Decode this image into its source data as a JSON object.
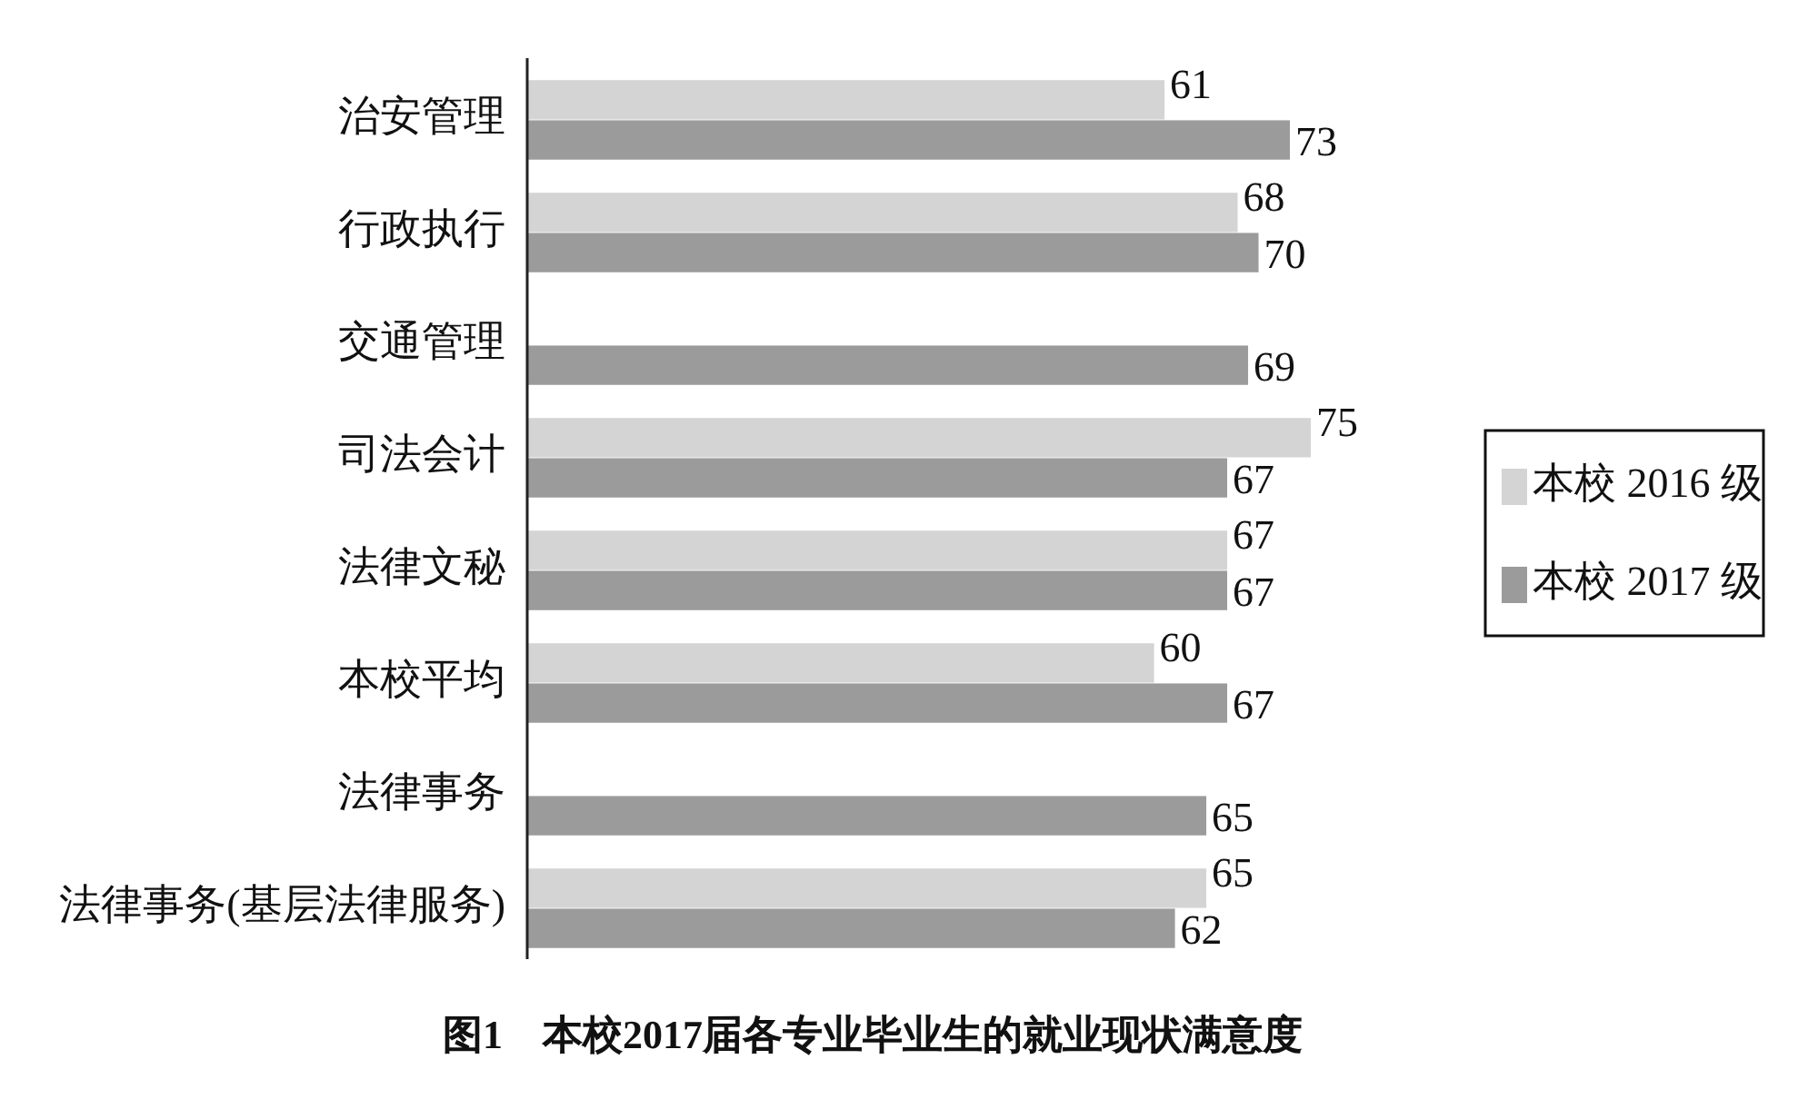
{
  "chart_data": {
    "type": "bar",
    "orientation": "horizontal",
    "title": "图1　本校2017届各专业毕业生的就业现状满意度",
    "categories": [
      "治安管理",
      "行政执行",
      "交通管理",
      "司法会计",
      "法律文秘",
      "本校平均",
      "法律事务",
      "法律事务(基层法律服务)"
    ],
    "series": [
      {
        "name": "本校 2016 级",
        "color": "#d4d4d4",
        "values": [
          61,
          68,
          null,
          75,
          67,
          60,
          null,
          65
        ]
      },
      {
        "name": "本校 2017 级",
        "color": "#9b9b9b",
        "values": [
          73,
          70,
          69,
          67,
          67,
          67,
          65,
          62
        ]
      }
    ],
    "data_labels": true,
    "legend": "right"
  }
}
